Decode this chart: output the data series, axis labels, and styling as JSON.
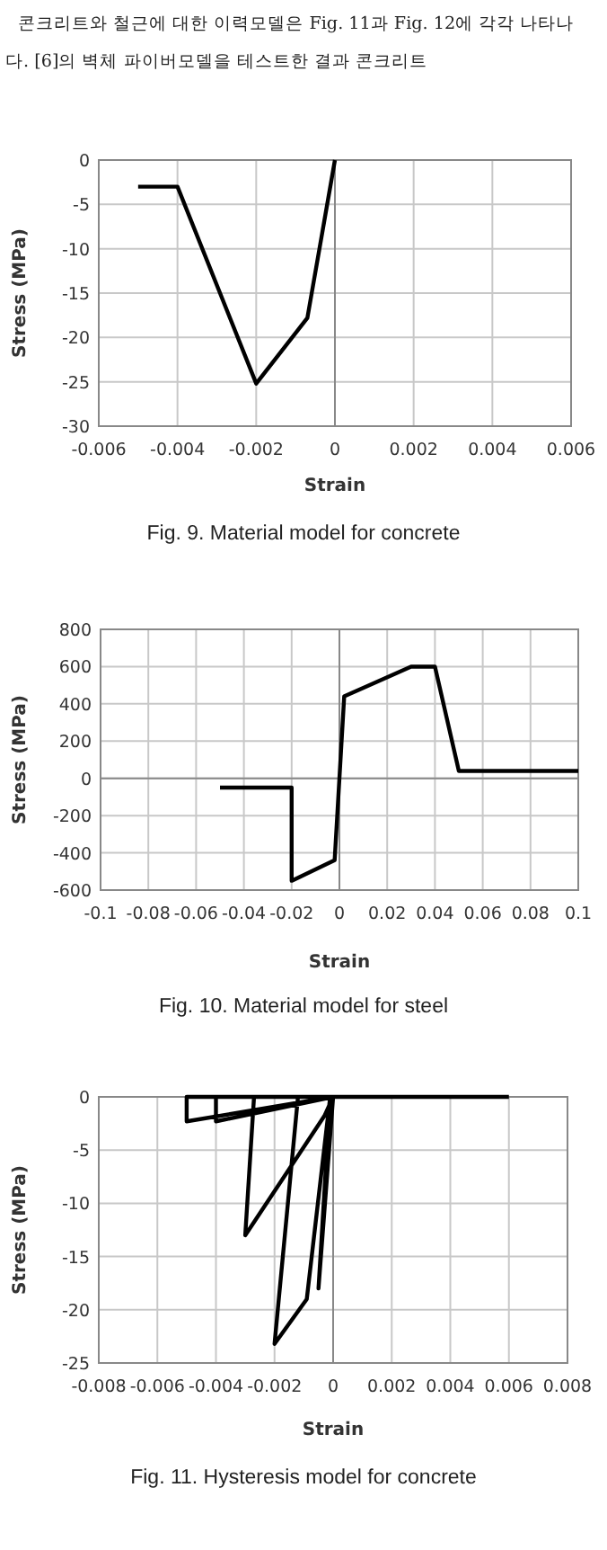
{
  "chart_data": [
    {
      "type": "line",
      "title": "Fig. 9. Material model for concrete",
      "xlabel": "Strain",
      "ylabel": "Stress (MPa)",
      "annotations": [
        "콘크리트와 철근에 대한 이력모델은 Fig. 11과 Fig. 12에 각각 나타나",
        "다. [6]의 벽체 파이버모델을 테스트한 결과 콘크리트"
      ],
      "x": [
        -0.005,
        -0.004,
        -0.002,
        -0.0007,
        0
      ],
      "series": [
        {
          "color": "#000000",
          "values": [
            -3,
            -3,
            -25.2,
            -17.8,
            0
          ]
        }
      ],
      "xlim": [
        -0.006,
        0.006
      ],
      "xticks": [
        -0.006,
        -0.004,
        -0.002,
        0,
        0.002,
        0.004,
        0.006
      ],
      "ylim": [
        -30,
        0
      ],
      "yticks": [
        -30,
        -25,
        -20,
        -15,
        -10,
        -5,
        0
      ],
      "grid": true,
      "marker": "none",
      "line_style": "solid"
    },
    {
      "type": "line",
      "title": "Fig. 10. Material model for steel",
      "xlabel": "Strain",
      "ylabel": "Stress (MPa)",
      "x": [
        -0.05,
        -0.02,
        -0.02,
        -0.002,
        0.002,
        0.03,
        0.04,
        0.05,
        0.1
      ],
      "series": [
        {
          "color": "#000000",
          "values": [
            -50,
            -50,
            -550,
            -440,
            440,
            600,
            600,
            40,
            40
          ]
        }
      ],
      "xlim": [
        -0.1,
        0.1
      ],
      "xticks": [
        -0.1,
        -0.08,
        -0.06,
        -0.04,
        -0.02,
        0,
        0.02,
        0.04,
        0.06,
        0.08,
        0.1
      ],
      "ylim": [
        -600,
        800
      ],
      "yticks": [
        -600,
        -400,
        -200,
        0,
        200,
        400,
        600,
        800
      ],
      "grid": true,
      "marker": "none",
      "line_style": "solid"
    },
    {
      "type": "line",
      "title": "Fig. 11. Hysteresis model for concrete",
      "xlabel": "Strain",
      "ylabel": "Stress (MPa)",
      "x": [
        0,
        -0.0005,
        -0.0001,
        -0.0009,
        -0.002,
        -0.0012,
        0,
        -0.0003,
        -0.003,
        -0.0027,
        0,
        -0.004,
        -0.004,
        0,
        -0.005,
        -0.005,
        0.006
      ],
      "series": [
        {
          "color": "#000000",
          "values": [
            0,
            -18,
            0,
            -19,
            -23.2,
            0,
            0,
            -1.8,
            -13,
            0,
            0,
            -2.3,
            0,
            0,
            -2.3,
            0,
            0
          ]
        }
      ],
      "xlim": [
        -0.008,
        0.008
      ],
      "xticks": [
        -0.008,
        -0.006,
        -0.004,
        -0.002,
        0,
        0.002,
        0.004,
        0.006,
        0.008
      ],
      "ylim": [
        -25,
        0
      ],
      "yticks": [
        -25,
        -20,
        -15,
        -10,
        -5,
        0
      ],
      "grid": true,
      "marker": "none",
      "line_style": "solid"
    }
  ]
}
